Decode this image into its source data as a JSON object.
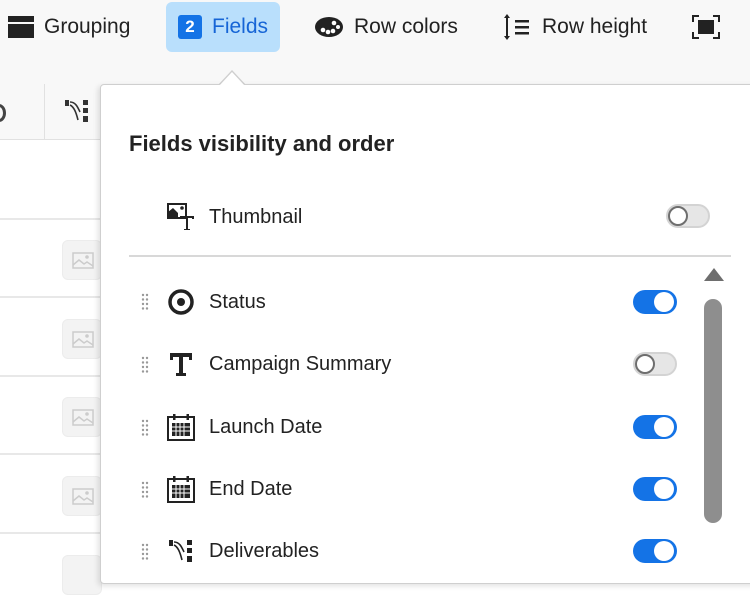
{
  "toolbar": {
    "grouping": "Grouping",
    "fields_count": "2",
    "fields": "Fields",
    "row_colors": "Row colors",
    "row_height": "Row height"
  },
  "popover": {
    "title": "Fields visibility and order",
    "pinned": {
      "label": "Thumbnail",
      "enabled": false,
      "icon": "thumbnail-icon"
    },
    "fields": [
      {
        "label": "Status",
        "enabled": true,
        "icon": "status-icon"
      },
      {
        "label": "Campaign Summary",
        "enabled": false,
        "icon": "text-icon"
      },
      {
        "label": "Launch Date",
        "enabled": true,
        "icon": "calendar-icon"
      },
      {
        "label": "End Date",
        "enabled": true,
        "icon": "calendar-icon"
      },
      {
        "label": "Deliverables",
        "enabled": true,
        "icon": "deliverables-icon"
      }
    ]
  },
  "colors": {
    "accent": "#1473e6",
    "active_bg": "#b9dffc"
  }
}
